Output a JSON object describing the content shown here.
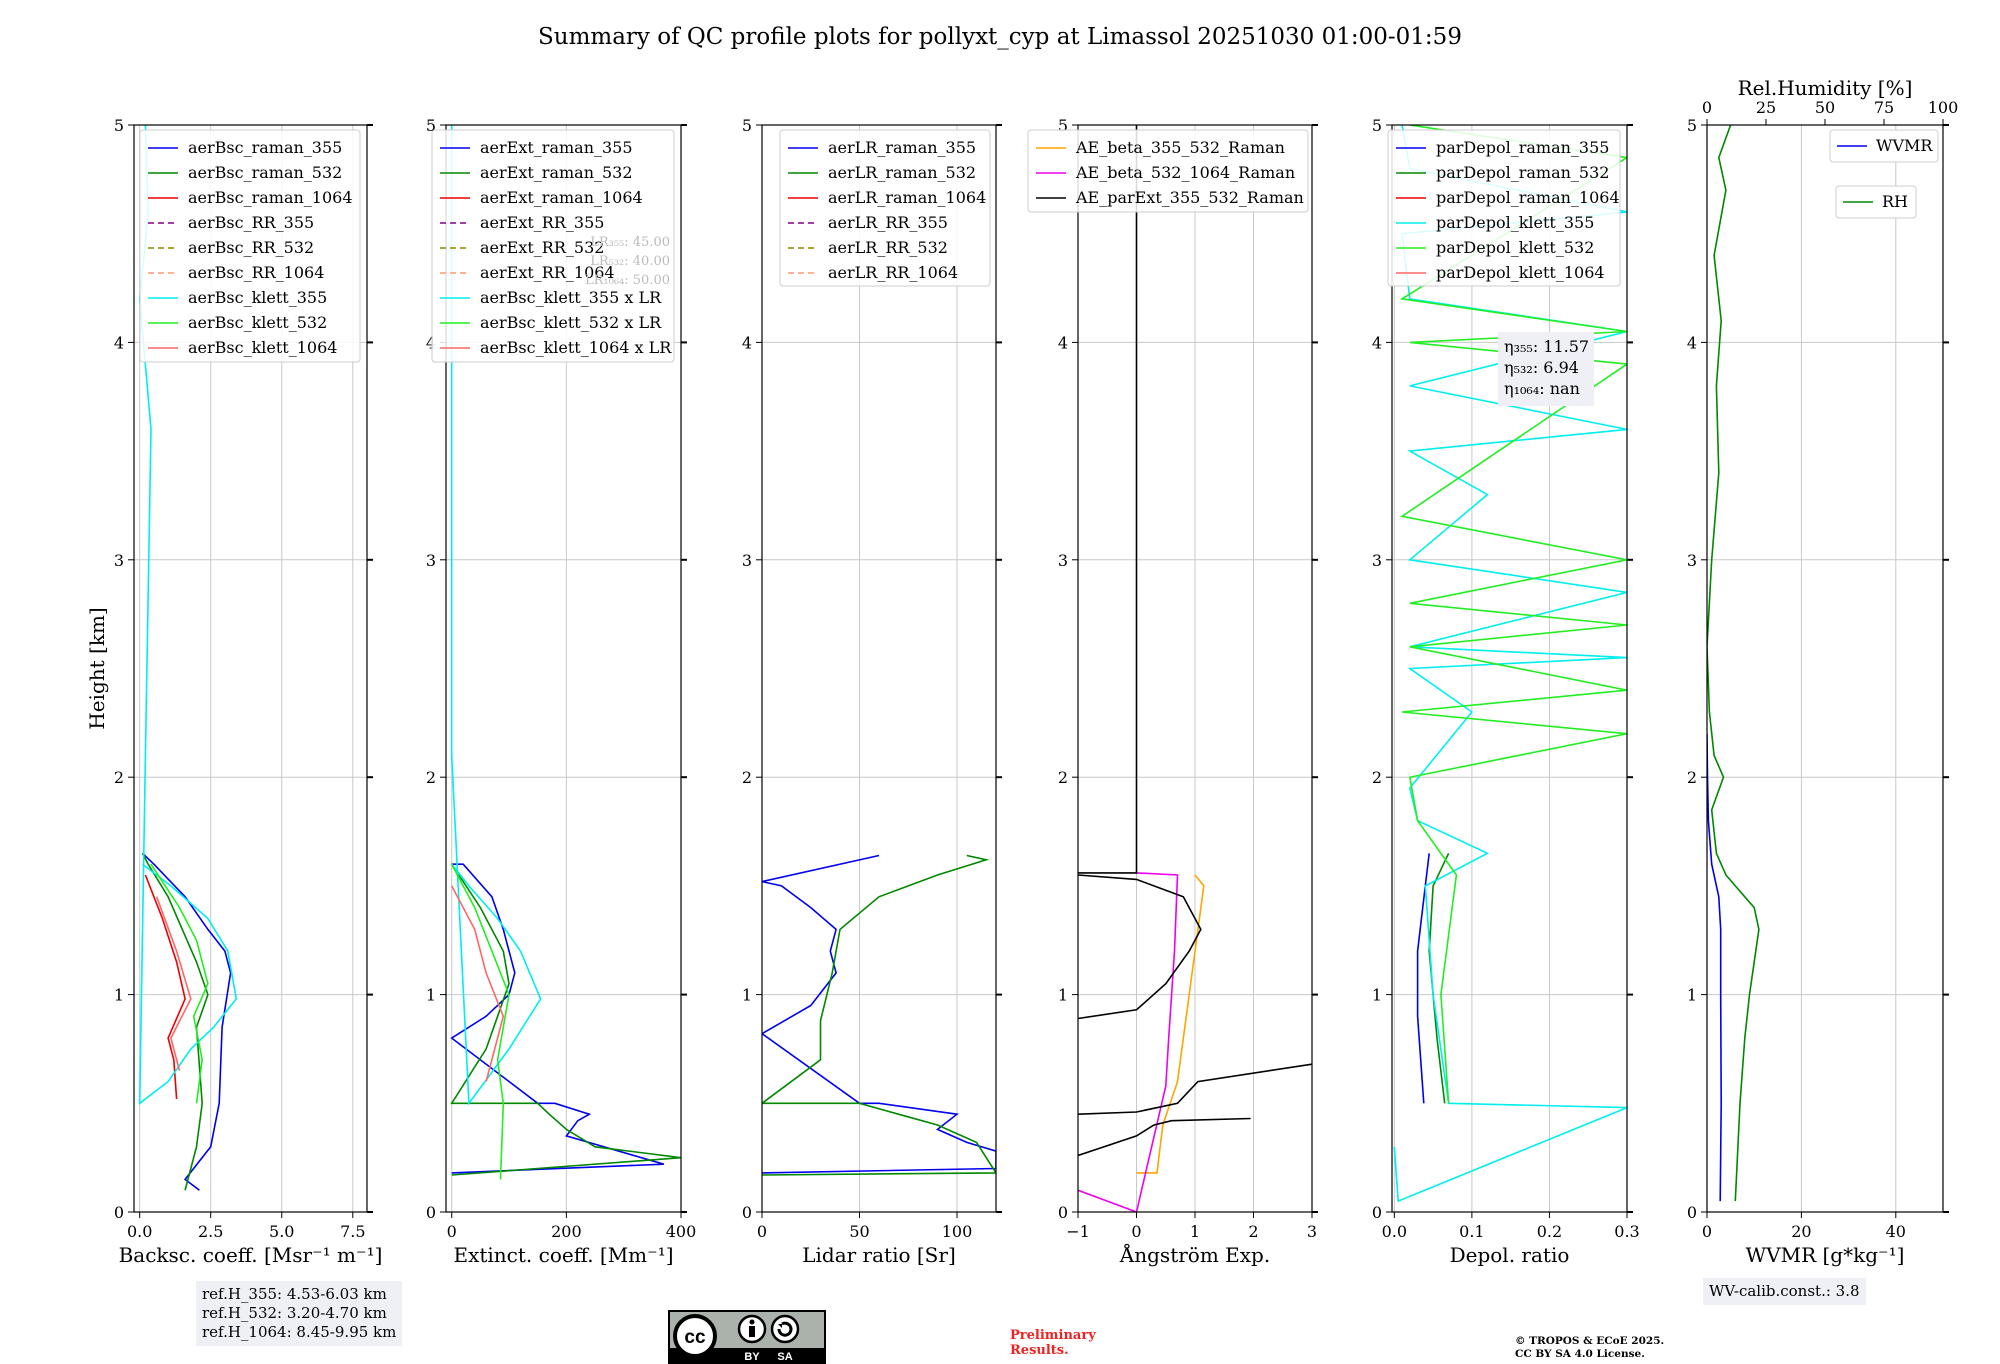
{
  "title": "Summary of QC profile plots for pollyxt_cyp at Limassol 20251030 01:00-01:59",
  "chart_data": [
    {
      "type": "line",
      "name": "backscatter",
      "xlabel": "Backsc. coeff. [Msr⁻¹ m⁻¹]",
      "ylabel": "Height [km]",
      "xlim": [
        -0.2,
        8
      ],
      "ylim": [
        0,
        5
      ],
      "xticks": [
        0,
        2.5,
        5,
        7.5
      ],
      "xtick_labels": [
        "0.0",
        "2.5",
        "5.0",
        "7.5"
      ],
      "yticks": [
        0,
        1,
        2,
        3,
        4,
        5
      ],
      "ytick_labels": [
        "0",
        "1",
        "2",
        "3",
        "4",
        "5"
      ],
      "legend": [
        "aerBsc_raman_355",
        "aerBsc_raman_532",
        "aerBsc_raman_1064",
        "aerBsc_RR_355",
        "aerBsc_RR_532",
        "aerBsc_RR_1064",
        "aerBsc_klett_355",
        "aerBsc_klett_532",
        "aerBsc_klett_1064"
      ],
      "series": [
        {
          "name": "aerBsc_raman_355",
          "color": "#0000ee",
          "x": [
            2.1,
            1.6,
            2.5,
            2.8,
            2.9,
            3.2,
            3.0,
            2.4,
            1.6,
            0.5,
            0.1
          ],
          "y": [
            0.1,
            0.15,
            0.3,
            0.5,
            0.85,
            1.1,
            1.2,
            1.3,
            1.45,
            1.6,
            1.65
          ]
        },
        {
          "name": "aerBsc_raman_532",
          "color": "#008800",
          "x": [
            1.6,
            2.0,
            2.2,
            2.0,
            2.4,
            2.0,
            1.5,
            1.0,
            0.3,
            0.1
          ],
          "y": [
            0.1,
            0.3,
            0.5,
            0.85,
            1.0,
            1.15,
            1.3,
            1.45,
            1.6,
            1.65
          ]
        },
        {
          "name": "aerBsc_raman_1064",
          "color": "#ee0000",
          "x": [
            1.3,
            1.2,
            1.0,
            1.6,
            1.3,
            0.8,
            0.2
          ],
          "y": [
            0.52,
            0.7,
            0.8,
            0.98,
            1.15,
            1.35,
            1.55
          ]
        },
        {
          "name": "aerBsc_klett_355",
          "color": "#00eeee",
          "x": [
            0.2,
            0.3,
            0.0,
            0.4,
            0.2,
            0.0,
            1.0,
            1.8,
            2.6,
            3.4,
            3.1,
            2.4,
            1.1,
            0.1
          ],
          "y": [
            5.0,
            4.6,
            4.2,
            3.6,
            2.1,
            0.5,
            0.6,
            0.75,
            0.85,
            0.98,
            1.2,
            1.35,
            1.5,
            1.6
          ]
        },
        {
          "name": "aerBsc_klett_532",
          "color": "#22ee22",
          "x": [
            2.0,
            2.2,
            1.9,
            2.4,
            2.0,
            1.4,
            0.4
          ],
          "y": [
            0.5,
            0.7,
            0.9,
            1.05,
            1.25,
            1.4,
            1.6
          ]
        },
        {
          "name": "aerBsc_klett_1064",
          "color": "#ff6666",
          "x": [
            1.4,
            1.1,
            1.8,
            1.3,
            0.6
          ],
          "y": [
            0.65,
            0.8,
            0.98,
            1.2,
            1.45
          ]
        }
      ],
      "reference_heights": [
        "ref.H_355: 4.53-6.03 km",
        "ref.H_532: 3.20-4.70 km",
        "ref.H_1064: 8.45-9.95 km"
      ]
    },
    {
      "type": "line",
      "name": "extinction",
      "xlabel": "Extinct. coeff. [Mm⁻¹]",
      "xlim": [
        -10,
        400
      ],
      "ylim": [
        0,
        5
      ],
      "xticks": [
        0,
        200,
        400
      ],
      "xtick_labels": [
        "0",
        "200",
        "400"
      ],
      "yticks": [
        0,
        1,
        2,
        3,
        4,
        5
      ],
      "ytick_labels": [
        "0",
        "1",
        "2",
        "3",
        "4",
        "5"
      ],
      "legend": [
        "aerExt_raman_355",
        "aerExt_raman_532",
        "aerExt_raman_1064",
        "aerExt_RR_355",
        "aerExt_RR_532",
        "aerExt_RR_1064",
        "aerBsc_klett_355 x LR",
        "aerBsc_klett_532 x LR",
        "aerBsc_klett_1064 x LR"
      ],
      "lidar_ratio_labels": [
        "LR₃₅₅: 45.00",
        "LR₅₃₂: 40.00",
        "LR₁₀₆₄: 50.00"
      ],
      "series": [
        {
          "name": "aerExt_raman_355",
          "color": "#0000ee",
          "x": [
            0,
            370,
            200,
            220,
            240,
            180,
            150,
            0,
            60,
            100,
            110,
            90,
            70,
            20,
            0
          ],
          "y": [
            0.18,
            0.22,
            0.35,
            0.42,
            0.45,
            0.5,
            0.5,
            0.8,
            0.9,
            1.0,
            1.1,
            1.3,
            1.45,
            1.6,
            1.6
          ]
        },
        {
          "name": "aerExt_raman_532",
          "color": "#008800",
          "x": [
            0,
            400,
            250,
            200,
            170,
            150,
            0,
            60,
            80,
            100,
            90,
            50,
            0
          ],
          "y": [
            0.17,
            0.25,
            0.3,
            0.38,
            0.45,
            0.5,
            0.5,
            0.75,
            0.9,
            1.05,
            1.2,
            1.4,
            1.6
          ]
        },
        {
          "name": "aerBsc_klett_355 x LR",
          "color": "#00eeee",
          "x": [
            0,
            0,
            30,
            100,
            155,
            120,
            80,
            30,
            0
          ],
          "y": [
            5.0,
            2.1,
            0.5,
            0.75,
            0.98,
            1.2,
            1.35,
            1.5,
            1.6
          ]
        },
        {
          "name": "aerBsc_klett_532 x LR",
          "color": "#22ee22",
          "x": [
            85,
            90,
            80,
            100,
            70,
            40,
            0
          ],
          "y": [
            0.15,
            0.5,
            0.7,
            1.0,
            1.2,
            1.4,
            1.6
          ]
        },
        {
          "name": "aerBsc_klett_1064 x LR",
          "color": "#ff6666",
          "x": [
            60,
            90,
            60,
            40,
            0
          ],
          "y": [
            0.6,
            0.9,
            1.1,
            1.3,
            1.5
          ]
        }
      ]
    },
    {
      "type": "line",
      "name": "lidar_ratio",
      "xlabel": "Lidar ratio [Sr]",
      "xlim": [
        0,
        120
      ],
      "ylim": [
        0,
        5
      ],
      "xticks": [
        0,
        50,
        100
      ],
      "xtick_labels": [
        "0",
        "50",
        "100"
      ],
      "yticks": [
        0,
        1,
        2,
        3,
        4,
        5
      ],
      "ytick_labels": [
        "0",
        "1",
        "2",
        "3",
        "4",
        "5"
      ],
      "legend": [
        "aerLR_raman_355",
        "aerLR_raman_532",
        "aerLR_raman_1064",
        "aerLR_RR_355",
        "aerLR_RR_532",
        "aerLR_RR_1064"
      ],
      "series": [
        {
          "name": "aerLR_raman_355",
          "color": "#0000ee",
          "x": [
            0,
            120,
            120,
            105,
            90,
            100,
            60,
            50,
            0,
            25,
            38,
            35,
            38,
            25,
            10,
            0,
            60
          ],
          "y": [
            0.18,
            0.2,
            0.28,
            0.32,
            0.38,
            0.45,
            0.5,
            0.5,
            0.82,
            0.95,
            1.1,
            1.2,
            1.3,
            1.4,
            1.5,
            1.52,
            1.64
          ]
        },
        {
          "name": "aerLR_raman_532",
          "color": "#008800",
          "x": [
            0,
            120,
            110,
            90,
            70,
            50,
            0,
            30,
            30,
            36,
            40,
            60,
            90,
            115,
            105
          ],
          "y": [
            0.17,
            0.18,
            0.32,
            0.4,
            0.45,
            0.5,
            0.5,
            0.7,
            0.88,
            1.1,
            1.3,
            1.45,
            1.55,
            1.62,
            1.64
          ]
        }
      ]
    },
    {
      "type": "line",
      "name": "angstrom",
      "xlabel": "Ångström Exp.",
      "xlim": [
        -1,
        3
      ],
      "ylim": [
        0,
        5
      ],
      "xticks": [
        -1,
        0,
        1,
        2,
        3
      ],
      "xtick_labels": [
        "−1",
        "0",
        "1",
        "2",
        "3"
      ],
      "yticks": [
        0,
        1,
        2,
        3,
        4,
        5
      ],
      "ytick_labels": [
        "0",
        "1",
        "2",
        "3",
        "4",
        "5"
      ],
      "legend": [
        "AE_beta_355_532_Raman",
        "AE_beta_532_1064_Raman",
        "AE_parExt_355_532_Raman"
      ],
      "series": [
        {
          "name": "AE_beta_355_532_Raman",
          "color": "#ffa500",
          "x": [
            0.0,
            0.35,
            0.45,
            0.7,
            0.9,
            1.15,
            1.0
          ],
          "y": [
            0.18,
            0.18,
            0.4,
            0.6,
            1.0,
            1.5,
            1.55
          ]
        },
        {
          "name": "AE_beta_532_1064_Raman",
          "color": "#ee00ee",
          "x": [
            -1.0,
            0.0,
            0.5,
            0.55,
            0.65,
            0.7,
            0.0
          ],
          "y": [
            0.1,
            0.0,
            0.58,
            0.8,
            1.2,
            1.55,
            1.56
          ]
        },
        {
          "name": "AE_parExt_355_532_Raman",
          "color": "#000000",
          "x": [
            -1.0,
            0.0,
            0.3,
            0.6,
            1.95
          ],
          "y": [
            0.26,
            0.35,
            0.4,
            0.42,
            0.43
          ]
        },
        {
          "name": "AE_parExt_355_532_Raman_b",
          "color": "#000000",
          "x": [
            -1.0,
            0.0,
            0.7,
            1.05,
            3.0
          ],
          "y": [
            0.45,
            0.46,
            0.5,
            0.6,
            0.68
          ]
        },
        {
          "name": "AE_parExt_355_532_Raman_c",
          "color": "#000000",
          "x": [
            -1.0,
            0.0,
            0.5,
            0.9,
            1.1,
            0.8,
            0.0,
            -1.0
          ],
          "y": [
            0.89,
            0.93,
            1.05,
            1.2,
            1.3,
            1.45,
            1.53,
            1.55
          ]
        },
        {
          "name": "AE_parExt_355_532_Raman_d",
          "color": "#000000",
          "x": [
            0.0,
            0.0,
            -1.0
          ],
          "y": [
            5.0,
            1.56,
            1.56
          ]
        }
      ]
    },
    {
      "type": "line",
      "name": "depolarization",
      "xlabel": "Depol. ratio",
      "xlim": [
        -0.003,
        0.3
      ],
      "ylim": [
        0,
        5
      ],
      "xticks": [
        0.0,
        0.1,
        0.2,
        0.3
      ],
      "xtick_labels": [
        "0.0",
        "0.1",
        "0.2",
        "0.3"
      ],
      "yticks": [
        0,
        1,
        2,
        3,
        4,
        5
      ],
      "ytick_labels": [
        "0",
        "1",
        "2",
        "3",
        "4",
        "5"
      ],
      "legend": [
        "parDepol_raman_355",
        "parDepol_raman_532",
        "parDepol_raman_1064",
        "parDepol_klett_355",
        "parDepol_klett_532",
        "parDepol_klett_1064"
      ],
      "eta_labels": [
        "η₃₅₅: 11.57",
        "η₅₃₂: 6.94",
        "η₁₀₆₄: nan"
      ],
      "series": [
        {
          "name": "parDepol_raman_355",
          "color": "#0000ee",
          "x": [
            0.038,
            0.03,
            0.03,
            0.04,
            0.045
          ],
          "y": [
            0.5,
            0.9,
            1.2,
            1.5,
            1.65
          ]
        },
        {
          "name": "parDepol_raman_532",
          "color": "#008800",
          "x": [
            0.065,
            0.055,
            0.045,
            0.05,
            0.07
          ],
          "y": [
            0.5,
            0.8,
            1.2,
            1.5,
            1.65
          ]
        },
        {
          "name": "parDepol_klett_355",
          "color": "#00eeee",
          "x": [
            0.0,
            0.005,
            0.3,
            0.07,
            0.05,
            0.04,
            0.12,
            0.03,
            0.02,
            0.1,
            0.02,
            0.3,
            0.02,
            0.3,
            0.02,
            0.12,
            0.02,
            0.3,
            0.02,
            0.3,
            0.02,
            0.01,
            0.3,
            0.02,
            0.01
          ],
          "y": [
            0.3,
            0.05,
            0.48,
            0.5,
            1.0,
            1.5,
            1.65,
            1.8,
            1.95,
            2.3,
            2.5,
            2.55,
            2.6,
            2.85,
            3.0,
            3.3,
            3.5,
            3.6,
            3.8,
            4.05,
            4.2,
            4.5,
            4.6,
            4.8,
            5.0
          ]
        },
        {
          "name": "parDepol_klett_532",
          "color": "#22ee22",
          "x": [
            0.07,
            0.06,
            0.08,
            0.03,
            0.02,
            0.3,
            0.01,
            0.3,
            0.02,
            0.3,
            0.02,
            0.3,
            0.01,
            0.3,
            0.02,
            0.3,
            0.01,
            0.3,
            0.02
          ],
          "y": [
            0.5,
            1.0,
            1.55,
            1.8,
            2.0,
            2.2,
            2.3,
            2.4,
            2.6,
            2.7,
            2.8,
            3.0,
            3.2,
            3.9,
            4.0,
            4.05,
            4.2,
            4.85,
            5.0
          ]
        }
      ]
    },
    {
      "type": "line",
      "name": "water_vapor",
      "xlabel": "WVMR [g*kg⁻¹]",
      "top_xlabel": "Rel.Humidity [%]",
      "xlim": [
        0,
        50
      ],
      "ylim": [
        0,
        5
      ],
      "xticks": [
        0,
        20,
        40
      ],
      "xtick_labels": [
        "0",
        "20",
        "40"
      ],
      "top_xticks": [
        0,
        25,
        50,
        75,
        100
      ],
      "top_xtick_labels": [
        "0",
        "25",
        "50",
        "75",
        "100"
      ],
      "yticks": [
        0,
        1,
        2,
        3,
        4,
        5
      ],
      "ytick_labels": [
        "0",
        "1",
        "2",
        "3",
        "4",
        "5"
      ],
      "legend": [
        "WVMR",
        "RH"
      ],
      "wv_calib": "WV-calib.const.: 3.8",
      "series": [
        {
          "name": "WVMR",
          "color": "#0000ee",
          "axis": "bottom",
          "x": [
            2.8,
            3.0,
            2.9,
            2.9,
            2.5,
            1.0,
            0.3,
            0.1,
            0.0
          ],
          "y": [
            0.05,
            0.5,
            1.0,
            1.3,
            1.45,
            1.6,
            1.8,
            2.0,
            2.2
          ]
        },
        {
          "name": "RH",
          "color": "#008800",
          "axis": "top",
          "x": [
            12,
            14,
            16,
            18,
            22,
            20,
            16,
            8,
            4,
            2,
            7,
            3,
            1,
            0,
            2,
            5,
            4,
            6,
            3,
            8,
            5,
            10
          ],
          "y": [
            0.05,
            0.5,
            0.8,
            1.0,
            1.3,
            1.4,
            1.45,
            1.55,
            1.65,
            1.85,
            2.0,
            2.1,
            2.3,
            2.6,
            3.0,
            3.4,
            3.8,
            4.1,
            4.4,
            4.7,
            4.85,
            5.0
          ]
        }
      ]
    }
  ],
  "footer": {
    "preliminary": "Preliminary",
    "results": "Results.",
    "copyright": "© TROPOS & ECoE 2025.",
    "license": "CC BY SA 4.0 License.",
    "cc_by": "BY",
    "cc_sa": "SA",
    "cc_symbol": "cc"
  }
}
